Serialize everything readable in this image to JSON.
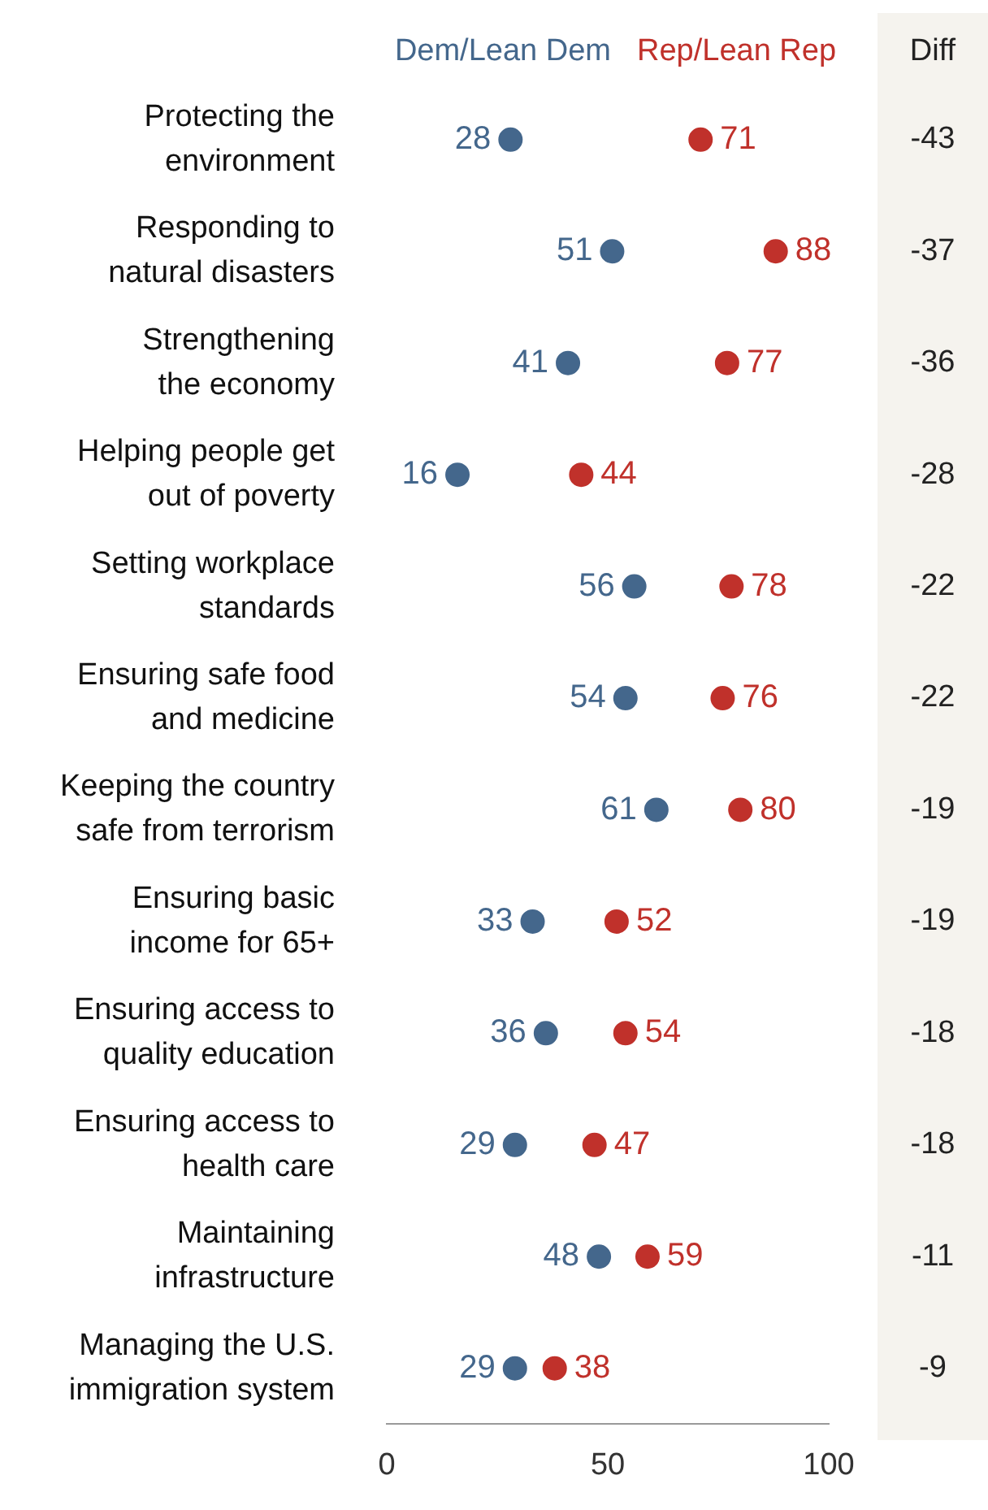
{
  "chart_data": {
    "type": "scatter",
    "categories": [
      "Protecting the\nenvironment",
      "Responding to\nnatural disasters",
      "Strengthening\nthe economy",
      "Helping people get\nout of poverty",
      "Setting workplace\nstandards",
      "Ensuring safe food\nand medicine",
      "Keeping the country\nsafe from terrorism",
      "Ensuring basic\nincome for 65+",
      "Ensuring access to\nquality education",
      "Ensuring access to\nhealth care",
      "Maintaining\ninfrastructure",
      "Managing the U.S.\nimmigration system"
    ],
    "series": [
      {
        "name": "Dem/Lean Dem",
        "color": "#44678c",
        "values": [
          28,
          51,
          41,
          16,
          56,
          54,
          61,
          33,
          36,
          29,
          48,
          29
        ]
      },
      {
        "name": "Rep/Lean Rep",
        "color": "#c0312b",
        "values": [
          71,
          88,
          77,
          44,
          78,
          76,
          80,
          52,
          54,
          47,
          59,
          38
        ]
      }
    ],
    "xlim": [
      0,
      100
    ],
    "xticks": [
      0,
      50,
      100
    ],
    "orientation": "horizontal",
    "marker": "circle",
    "legend": "top",
    "data_labels": true,
    "annotations": [
      "Diff",
      "-43",
      "-37",
      "-36",
      "-28",
      "-22",
      "-22",
      "-19",
      "-19",
      "-18",
      "-18",
      "-11",
      "-9"
    ]
  }
}
